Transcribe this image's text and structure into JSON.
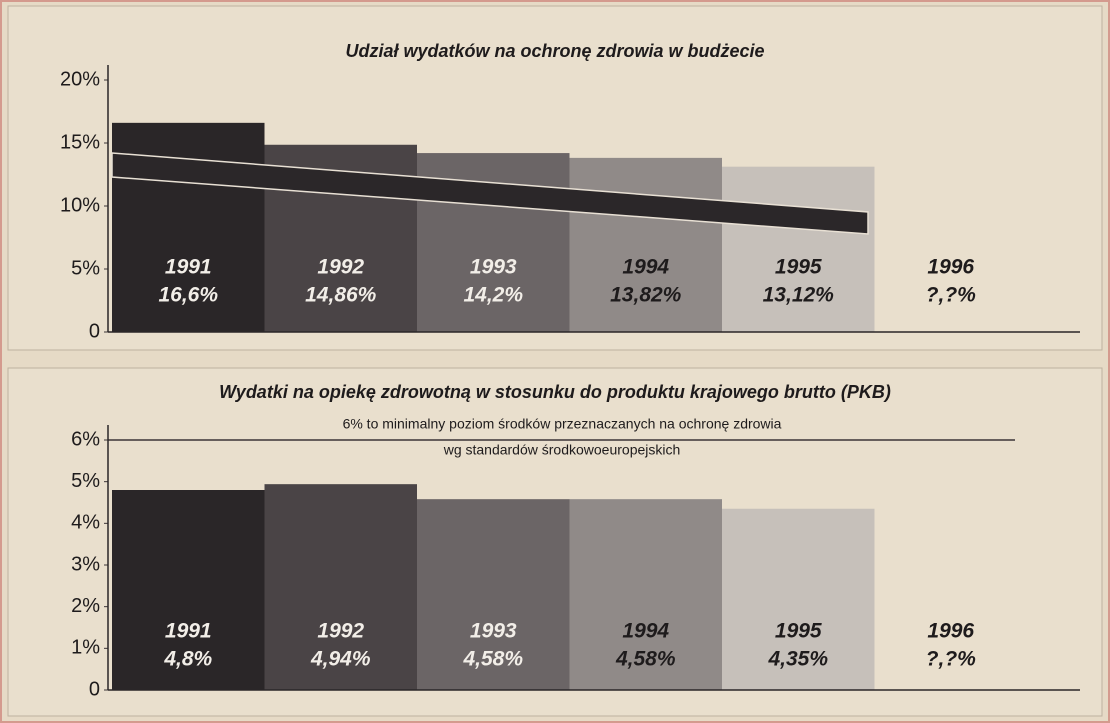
{
  "chart_data": [
    {
      "type": "bar",
      "title": "Udział wydatków na ochronę zdrowia w budżecie",
      "categories": [
        "1991",
        "1992",
        "1993",
        "1994",
        "1995",
        "1996"
      ],
      "values": [
        16.6,
        14.86,
        14.2,
        13.82,
        13.12,
        null
      ],
      "value_labels": [
        "16,6%",
        "14,86%",
        "14,2%",
        "13,82%",
        "13,12%",
        "?,?%"
      ],
      "colors": [
        "#2a2628",
        "#4a4446",
        "#6b6566",
        "#908a88",
        "#c6c0ba",
        "#d8ccb8"
      ],
      "ylim": [
        0,
        20
      ],
      "yticks": [
        0,
        {
          "value": 5,
          "label": "5%"
        },
        {
          "value": 10,
          "label": "10%"
        },
        {
          "value": 15,
          "label": "15%"
        },
        {
          "value": 20,
          "label": "20%"
        }
      ]
    },
    {
      "type": "bar",
      "title": "Wydatki na opiekę zdrowotną w stosunku do produktu krajowego brutto (PKB)",
      "annotations": [
        "6% to minimalny poziom środków przeznaczanych na ochronę zdrowia",
        "wg standardów środkowoeuropejskich"
      ],
      "reference_value": 6,
      "categories": [
        "1991",
        "1992",
        "1993",
        "1994",
        "1995",
        "1996"
      ],
      "values": [
        4.8,
        4.94,
        4.58,
        4.58,
        4.35,
        null
      ],
      "value_labels": [
        "4,8%",
        "4,94%",
        "4,58%",
        "4,58%",
        "4,35%",
        "?,?%"
      ],
      "colors": [
        "#2a2628",
        "#4a4446",
        "#6b6566",
        "#908a88",
        "#c6c0ba",
        "#d8ccb8"
      ],
      "ylim": [
        0,
        6
      ],
      "yticks": [
        0,
        {
          "value": 1,
          "label": "1%"
        },
        {
          "value": 2,
          "label": "2%"
        },
        {
          "value": 3,
          "label": "3%"
        },
        {
          "value": 4,
          "label": "4%"
        },
        {
          "value": 5,
          "label": "5%"
        },
        {
          "value": 6,
          "label": "6%"
        }
      ]
    }
  ]
}
